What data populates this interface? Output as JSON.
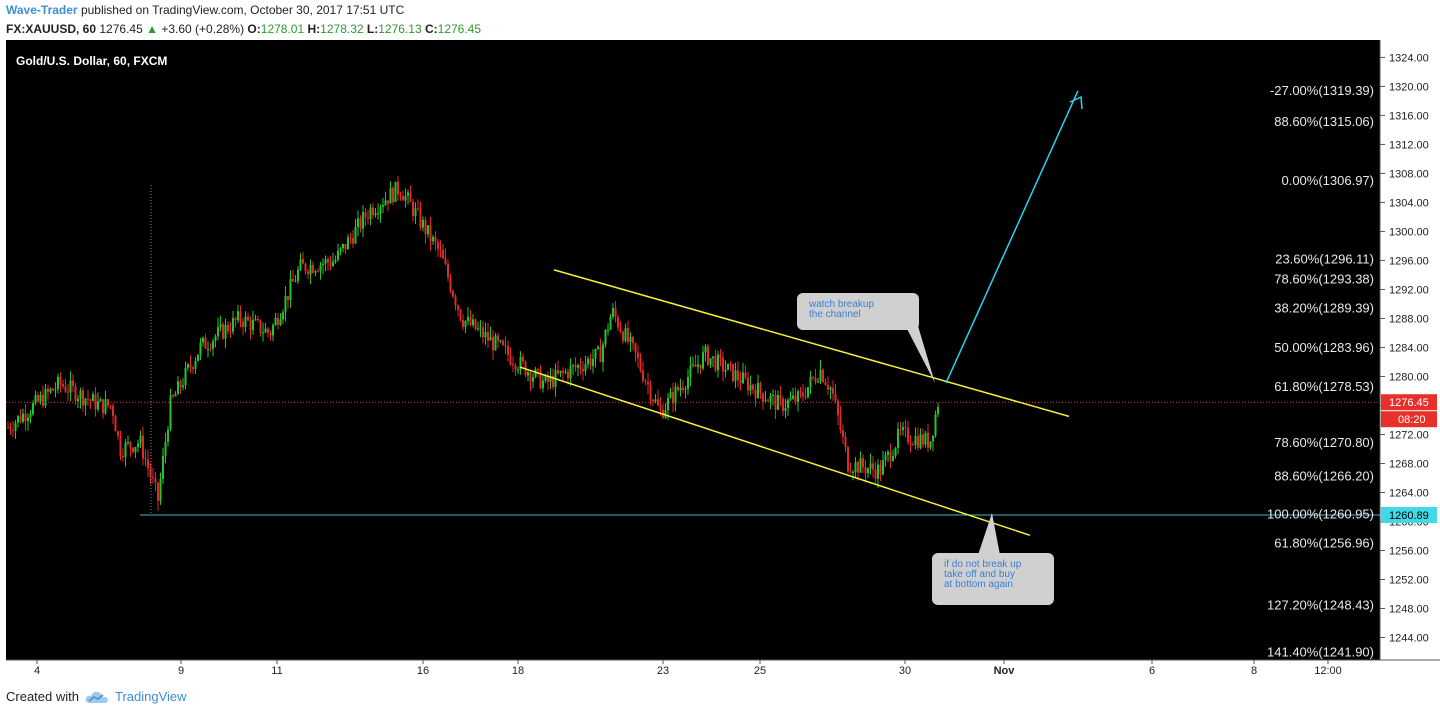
{
  "header": {
    "author": "Wave-Trader",
    "published_text": "published on TradingView.com, October 30, 2017 17:51 UTC",
    "symbol": "FX:XAUUSD, 60",
    "last": "1276.45",
    "change": "+3.60 (+0.28%)",
    "o_label": "O:",
    "o_value": "1278.01",
    "h_label": "H:",
    "h_value": "1278.32",
    "l_label": "L:",
    "l_value": "1276.13",
    "c_label": "C:",
    "c_value": "1276.45"
  },
  "footer": {
    "created_with": "Created with",
    "brand": "TradingView"
  },
  "colors": {
    "background": "#000000",
    "up": "#26c42a",
    "down": "#e02a2a",
    "channel": "#f5f03a",
    "arrow": "#29d3f0",
    "support": "#3fb8c4",
    "price_label": "#e8302b",
    "note_bg": "#d0d0d0",
    "note_text": "#3d7fd8"
  },
  "chart_data": {
    "type": "candlestick",
    "title": "Gold/U.S. Dollar, 60, FXCM",
    "yrange": [
      1240.9,
      1326.4
    ],
    "y_ticks": [
      1324,
      1320,
      1316,
      1312,
      1308,
      1304,
      1300,
      1296,
      1292,
      1288,
      1284,
      1280,
      1276,
      1272,
      1268,
      1264,
      1260,
      1256,
      1252,
      1248,
      1244
    ],
    "x_ticks": [
      "4",
      "9",
      "11",
      "16",
      "18",
      "23",
      "25",
      "30",
      "Nov",
      "6",
      "8",
      "12:00"
    ],
    "x_tick_bold": [
      "Nov"
    ],
    "close_path": [
      [
        "Oct 3",
        1273
      ],
      [
        "Oct 4",
        1279
      ],
      [
        "Oct 5",
        1276
      ],
      [
        "Oct 6",
        1276
      ],
      [
        "Oct 6",
        1270
      ],
      [
        "Oct 7",
        1271
      ],
      [
        "Oct 8",
        1263
      ],
      [
        "Oct 9",
        1276
      ],
      [
        "Oct 10",
        1284
      ],
      [
        "Oct 11",
        1288
      ],
      [
        "Oct 12",
        1286
      ],
      [
        "Oct 13",
        1295
      ],
      [
        "Oct 14",
        1296
      ],
      [
        "Oct 15",
        1303
      ],
      [
        "Oct 16",
        1306
      ],
      [
        "Oct 17",
        1297
      ],
      [
        "Oct 17",
        1288
      ],
      [
        "Oct 18",
        1285
      ],
      [
        "Oct 19",
        1279
      ],
      [
        "Oct 20",
        1283
      ],
      [
        "Oct 21",
        1289
      ],
      [
        "Oct 22",
        1283
      ],
      [
        "Oct 23",
        1275
      ],
      [
        "Oct 24",
        1283
      ],
      [
        "Oct 25",
        1276
      ],
      [
        "Oct 26",
        1277
      ],
      [
        "Oct 27",
        1281
      ],
      [
        "Oct 27",
        1278
      ],
      [
        "Oct 28",
        1268
      ],
      [
        "Oct 29",
        1267
      ],
      [
        "Oct 29",
        1272
      ],
      [
        "Oct 30",
        1271
      ],
      [
        "Oct 30",
        1276.45
      ]
    ],
    "last_price": "1276.45",
    "countdown": "08:20",
    "support_label": "1260.89",
    "support_level": 1260.89,
    "fib_levels": [
      {
        "label": "-27.00%(1319.39)",
        "price": 1319.39
      },
      {
        "label": "88.60%(1315.06)",
        "price": 1315.06
      },
      {
        "label": "0.00%(1306.97)",
        "price": 1306.97
      },
      {
        "label": "23.60%(1296.11)",
        "price": 1296.11
      },
      {
        "label": "78.60%(1293.38)",
        "price": 1293.38
      },
      {
        "label": "38.20%(1289.39)",
        "price": 1289.39
      },
      {
        "label": "50.00%(1283.96)",
        "price": 1283.96
      },
      {
        "label": "61.80%(1278.53)",
        "price": 1278.53
      },
      {
        "label": "78.60%(1270.80)",
        "price": 1270.8
      },
      {
        "label": "88.60%(1266.20)",
        "price": 1266.2
      },
      {
        "label": "100.00%(1260.95)",
        "price": 1260.95
      },
      {
        "label": "61.80%(1256.96)",
        "price": 1256.96
      },
      {
        "label": "127.20%(1248.43)",
        "price": 1248.43
      },
      {
        "label": "141.40%(1241.90)",
        "price": 1241.9
      }
    ],
    "annotations": [
      {
        "text": [
          "watch breakup",
          "the channel"
        ]
      },
      {
        "text": [
          "if do not break up",
          "take off and buy",
          "at bottom again"
        ]
      }
    ]
  }
}
